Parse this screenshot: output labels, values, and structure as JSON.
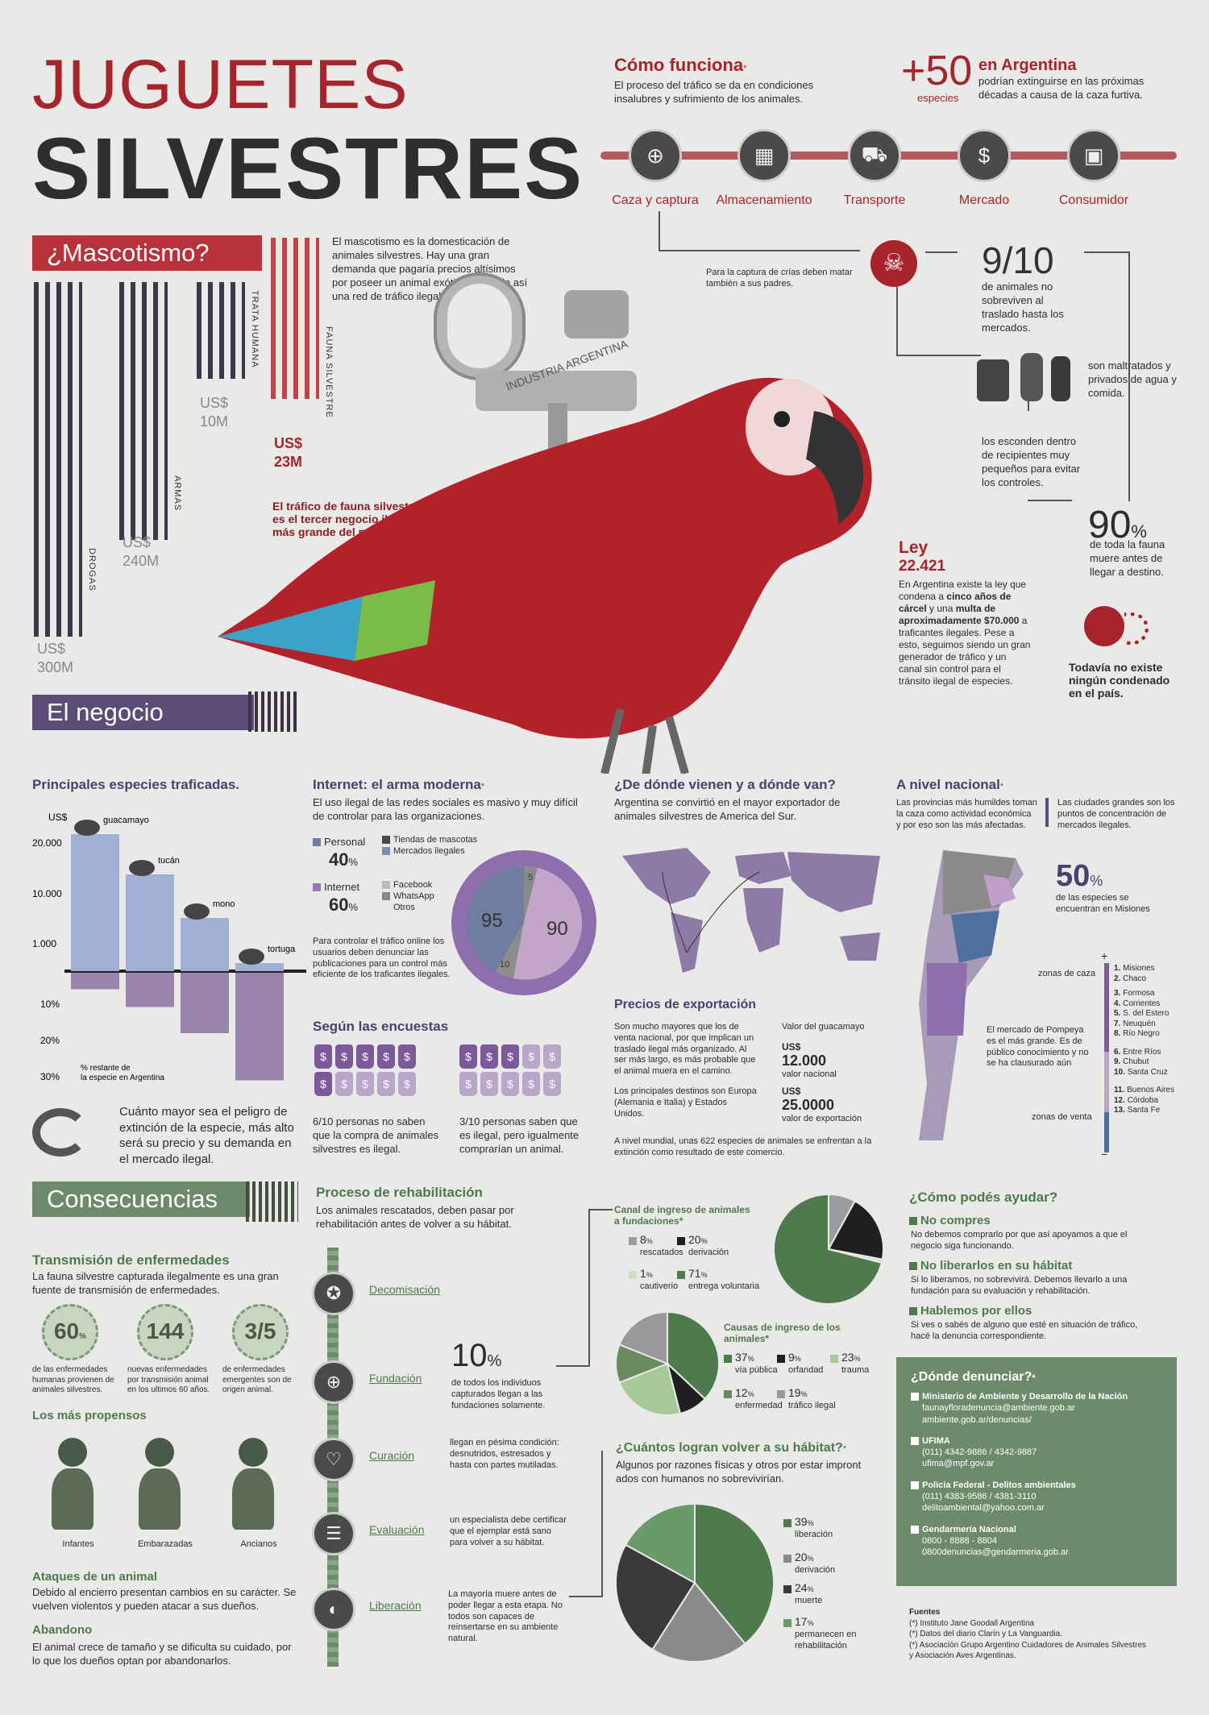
{
  "header": {
    "title1": "JUGUETES",
    "title2": "SILVESTRES"
  },
  "como": {
    "title": "Cómo funciona",
    "asterisk": "*",
    "desc": "El proceso del tráfico se da en condiciones insalubres y sufrimiento de los animales.",
    "stages": [
      "Caza y captura",
      "Almacenamiento",
      "Transporte",
      "Mercado",
      "Consumidor"
    ],
    "stage_icons": [
      "crosshair-icon",
      "window-icon",
      "truck-icon",
      "money-bag-icon",
      "shopping-bag-icon"
    ]
  },
  "extinct": {
    "plus": "+50",
    "word": "especies",
    "title": "en Argentina",
    "desc": "podrían extinguirse en las próximas décadas a causa de la caza furtiva."
  },
  "flow": {
    "caza_note": "Para la captura de crías deben matar también a sus padres.",
    "nine_ten": "9/10",
    "nine_desc": "de animales no sobreviven al traslado hasta los mercados.",
    "maltrato": "son maltratados y privados de agua y comida.",
    "esconden": "los esconden dentro de recipientes muy pequeños para evitar los controles.",
    "ninety": "90",
    "pct": "%",
    "ninety_desc": "de toda la fauna muere antes de llegar a destino."
  },
  "ley": {
    "title": "Ley",
    "num": "22.421",
    "desc_a": "En Argentina existe la ley que condena a ",
    "bold1": "cinco años de cárcel",
    "desc_b": " y una ",
    "bold2": "multa de aproximadamente $70.000",
    "desc_c": " a traficantes ilegales. Pese a esto, seguimos siendo un gran generador de tráfico y un canal sin control para el tránsito ilegal de especies.",
    "none": "Todavía no existe ningún condenado en el país."
  },
  "masc": {
    "banner": "¿Mascotismo?",
    "desc": "El mascotismo es la domesticación de animales silvestres. Hay una gran demanda que pagaría precios altísimos por poseer un animal exótico, creando así una red de tráfico ilegal.",
    "negocio": "El negocio",
    "key": "INDUSTRIA ARGENTINA",
    "trafico": "El tráfico de fauna silvestre es el tercer negocio ilegal más grande del mundo.",
    "bars": [
      {
        "label": "DROGAS",
        "cur": "US$",
        "val": "300M",
        "color": "#3a3a46",
        "h": 1
      },
      {
        "label": "ARMAS",
        "cur": "US$",
        "val": "240M",
        "color": "#3a3a46",
        "h": 0.8
      },
      {
        "label": "TRATA HUMANA",
        "cur": "US$",
        "val": "10M",
        "color": "#3a3a46",
        "h": 0.3
      },
      {
        "label": "FAUNA SILVESTRE",
        "cur": "US$",
        "val": "23M",
        "color": "#c0434a",
        "h": 0.42
      }
    ]
  },
  "especies": {
    "title": "Principales especies traficadas.",
    "ylab": "US$",
    "ticks": [
      "20.000",
      "10.000",
      "1.000"
    ],
    "pct_ticks": [
      "10%",
      "20%",
      "30%"
    ],
    "note": "% restante de la especie en Argentina",
    "animals": [
      "guacamayo",
      "tucán",
      "mono",
      "tortuga"
    ],
    "price_scale": [
      0.85,
      0.6,
      0.33,
      0.05
    ],
    "remain_scale": [
      0.08,
      0.25,
      0.5,
      0.95
    ],
    "bottom": "Cuánto mayor sea el peligro de extinción de la especie, más alto será su precio y su demanda en el mercado ilegal.",
    "cycle_icon": "cycle-arrows-icon"
  },
  "internet": {
    "title": "Internet: el arma moderna",
    "asterisk": "*",
    "desc": "El uso ilegal de las redes sociales es masivo y muy difícil de controlar para las organizaciones.",
    "personal": "Personal",
    "personal_pct": "40",
    "internet": "Internet",
    "internet_pct": "60",
    "pct": "%",
    "legend1": [
      "Tiendas de mascotas",
      "Mercados ilegales"
    ],
    "legend2": [
      "Facebook",
      "WhatsApp",
      "Otros"
    ],
    "donut": [
      {
        "label": "95",
        "pct": "%",
        "color": "#6e7da0"
      },
      {
        "label": "5",
        "pct": "%",
        "color": "#8a8a8a"
      },
      {
        "label": "90",
        "pct": "%",
        "color": "#c3a6c9"
      },
      {
        "label": "10",
        "pct": "%",
        "color": "#8d8d8d"
      }
    ],
    "ctrl": "Para controlar el tráfico online los usuarios deben denunciar las publicaciones para un control más eficiente de los traficantes ilegales."
  },
  "encuestas": {
    "title": "Según las encuestas",
    "a": "6/10 personas no saben que la compra de animales silvestres es ilegal.",
    "b": "3/10 personas saben que es ilegal, pero igualmente comprarían un animal.",
    "tag_sym": "$"
  },
  "origen": {
    "title": "¿De dónde vienen y a dónde van?",
    "desc": "Argentina se convirtió en el mayor exportador de animales silvestres de America del Sur.",
    "precios": "Precios de exportación",
    "pdesc": "Son mucho mayores que los de venta nacional, por que implican un traslado ilegal más organizado. Al ser más largo, es más probable que el animal muera en el camino.",
    "destinos": "Los principales destinos son Europa (Alemania e Italia) y Estados Unidos.",
    "valor": "Valor del guacamayo",
    "cur": "US$",
    "nac": "12.000",
    "nac_lab": "valor nacional",
    "exp": "25.0000",
    "exp_lab": "valor de exportación",
    "mundial": "A nivel mundial, unas 622 especies de animales se enfrentan a la extinción como resultado de este comercio."
  },
  "nacional": {
    "title": "A nivel nacional",
    "asterisk": "*",
    "d1": "Las provincias más humildes toman la caza como actividad económica y por eso son las más afectadas.",
    "d2": "Las ciudades grandes son los puntos de concentración de mercados ilegales.",
    "fifty": "50",
    "pct": "%",
    "fifty_desc": "de las especies se encuentran en Misiones",
    "caza": "zonas de caza",
    "venta": "zonas de venta",
    "pompeya": "El mercado de Pompeya es el más grande. Es de público conocimiento y no se ha clausurado aún",
    "plus": "+",
    "minus": "−",
    "prov": [
      [
        "1.",
        "Misiones"
      ],
      [
        "2.",
        "Chaco"
      ],
      [
        "3.",
        "Formosa"
      ],
      [
        "4.",
        "Corrientes"
      ],
      [
        "5.",
        "S. del Estero"
      ],
      [
        "7.",
        "Neuquén"
      ],
      [
        "8.",
        "Río Negro"
      ],
      [
        "6.",
        "Entre Ríos"
      ],
      [
        "9.",
        "Chubut"
      ],
      [
        "10.",
        "Santa Cruz"
      ],
      [
        "11.",
        "Buenos Aires"
      ],
      [
        "12.",
        "Córdoba"
      ],
      [
        "13.",
        "Santa Fe"
      ]
    ]
  },
  "cons": {
    "banner": "Consecuencias",
    "trans": "Transmisión de enfermedades",
    "trans_d": "La fauna silvestre capturada ilegalmente es una gran fuente de transmisión de enfermedades.",
    "stats": [
      {
        "v": "60",
        "s": "%",
        "d": "de las enfermedades humanas provienen de animales silvestres."
      },
      {
        "v": "144",
        "s": "",
        "d": "nuevas enfermedades por transmisión animal en los ultimos 60 años."
      },
      {
        "v": "3/5",
        "s": "",
        "d": "de enfermedades emergentes son de origen animal."
      }
    ],
    "propensos": "Los más propensos",
    "people": [
      "Infantes",
      "Embarazadas",
      "Ancianos"
    ],
    "ataques": "Ataques de un animal",
    "ataques_d": "Debido al encierro presentan cambios en su carácter. Se vuelven violentos y pueden atacar a sus dueños.",
    "aband": "Abandono",
    "aband_d": "El animal crece de tamaño y se dificulta su cuidado, por lo que los dueños optan por abandonarlos."
  },
  "rehab": {
    "title": "Proceso de rehabilitación",
    "desc": "Los animales rescatados, deben pasar por rehabilitación antes de volver a su hábitat.",
    "steps": [
      "Decomisación",
      "Fundación",
      "Curación",
      "Evaluación",
      "Liberación"
    ],
    "step_icons": [
      "badge-icon",
      "plus-icon",
      "heartbeat-icon",
      "checklist-icon",
      "elephant-icon"
    ],
    "ten": "10",
    "pct": "%",
    "ten_d": "de todos los individuos capturados llegan a las fundaciones solamente.",
    "n1": "llegan en pésima condición: desnutridos, estresados y hasta con partes mutiladas.",
    "n2": "un especialista debe certificar que el ejemplar está sano para volver a su hábitat.",
    "n3": "La mayoría muere antes de poder llegar a esta etapa. No todos son capaces de reinsertarse en su ambiente natural."
  },
  "canal": {
    "title": "Canal de ingreso de animales a fundaciones",
    "asterisk": "*",
    "items": [
      {
        "v": "8",
        "l": "rescatados",
        "c": "#9c9c9c"
      },
      {
        "v": "20",
        "l": "derivación",
        "c": "#1f1f1f"
      },
      {
        "v": "1",
        "l": "cautiverio",
        "c": "#cfe0c4"
      },
      {
        "v": "71",
        "l": "entrega voluntaria",
        "c": "#4e7a4e"
      }
    ]
  },
  "causas": {
    "title": "Causas de ingreso de los animales",
    "asterisk": "*",
    "items": [
      {
        "v": "37",
        "l": "vía pública",
        "c": "#4e7a4e"
      },
      {
        "v": "9",
        "l": "orfandad",
        "c": "#1f1f1f"
      },
      {
        "v": "23",
        "l": "trauma",
        "c": "#a9c89a"
      },
      {
        "v": "12",
        "l": "enfermedad",
        "c": "#6a8a62"
      },
      {
        "v": "19",
        "l": "tráfico ilegal",
        "c": "#999"
      }
    ]
  },
  "vuelven": {
    "title": "¿Cuántos logran volver a su hábitat?",
    "asterisk": "*",
    "desc": "Algunos por razones físicas y otros por estar impront ados con humanos no sobrevivirían.",
    "items": [
      {
        "v": "39",
        "l": "liberación",
        "c": "#4e7a4e"
      },
      {
        "v": "20",
        "l": "derivación",
        "c": "#8a8a8a"
      },
      {
        "v": "24",
        "l": "muerte",
        "c": "#3a3a3a"
      },
      {
        "v": "17",
        "l": "permanecen en rehabilitación",
        "c": "#6a9a6a"
      }
    ]
  },
  "ayudar": {
    "title": "¿Cómo podés ayudar?",
    "items": [
      {
        "h": "No compres",
        "d": "No debemos comprarlo por que así apoyamos a que el negocio siga funcionando."
      },
      {
        "h": "No liberarlos en su hábitat",
        "d": "Si lo liberamos, no sobrevivirá. Debemos llevarlo a una fundación para su evaluación y rehabilitación."
      },
      {
        "h": "Hablemos por ellos",
        "d": "Si ves o sabés de alguno que esté en situación de tráfico, hacé la denuncia correspondiente."
      }
    ]
  },
  "denunciar": {
    "title": "¿Dónde denunciar?",
    "asterisk": "*",
    "items": [
      {
        "h": "Ministerio de Ambiente y Desarrollo de la Nación",
        "l": [
          "faunayfloradenuncia@ambiente.gob.ar",
          "ambiente.gob.ar/denuncias/"
        ]
      },
      {
        "h": "UFIMA",
        "l": [
          "(011) 4342-9886 / 4342-9887",
          "ufima@mpf.gov.ar"
        ]
      },
      {
        "h": "Policía Federal - Delitos ambientales",
        "l": [
          "(011) 4383-9586 / 4381-3110",
          "delitoambiental@yahoo.com.ar"
        ]
      },
      {
        "h": "Gendarmería Nacional",
        "l": [
          "0800 - 8888 - 8804",
          "0800denuncias@gendarmeria.gob.ar"
        ]
      }
    ]
  },
  "fuentes": {
    "title": "Fuentes",
    "items": [
      "(*) Instituto Jane Goodall Argentina",
      "(*) Datos del diario Clarín y La Vanguardia.",
      "(*) Asociación Grupo Argentino Cuidadores de Animales Silvestres y Asociación Aves Argentinas."
    ]
  },
  "chart_data": [
    {
      "type": "bar",
      "title": "Principales especies traficadas.",
      "categories": [
        "guacamayo",
        "tucán",
        "mono",
        "tortuga"
      ],
      "series": [],
      "note": "% restante de la especie en Argentina"
    },
    {
      "type": "pie",
      "title": "Canal de ingreso de animales a fundaciones",
      "categories": [
        "rescatados",
        "derivación",
        "cautiverio",
        "entrega voluntaria"
      ],
      "values": [
        8,
        20,
        1,
        71
      ]
    },
    {
      "type": "pie",
      "title": "Causas de ingreso de los animales",
      "categories": [
        "vía pública",
        "orfandad",
        "trauma",
        "enfermedad",
        "tráfico ilegal"
      ],
      "values": [
        37,
        9,
        23,
        12,
        19
      ]
    },
    {
      "type": "pie",
      "title": "¿Cuántos logran volver a su hábitat?",
      "categories": [
        "liberación",
        "derivación",
        "muerte",
        "permanecen en rehabilitación"
      ],
      "values": [
        39,
        20,
        24,
        17
      ]
    },
    {
      "type": "pie",
      "title": "Internet: el arma moderna",
      "categories": [
        "Personal",
        "Internet"
      ],
      "values": [
        40,
        60
      ]
    }
  ]
}
